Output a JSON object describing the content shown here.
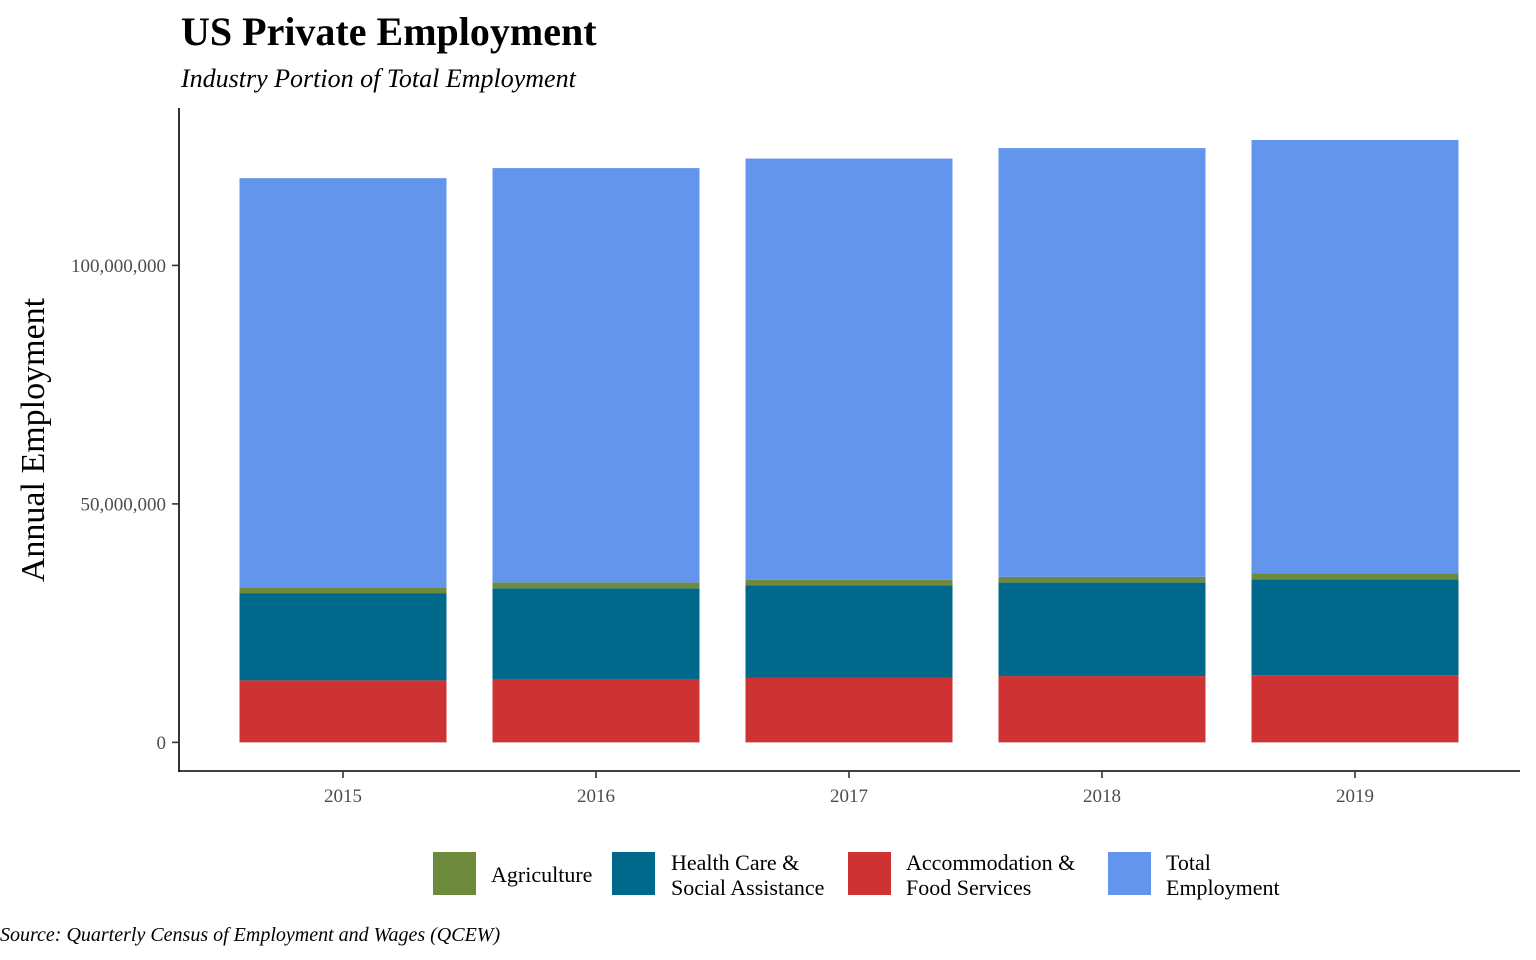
{
  "chart_data": {
    "type": "bar",
    "stacked": true,
    "title": "US Private Employment",
    "subtitle": "Industry Portion of Total Employment",
    "caption": "Source: Quarterly Census of Employment and Wages (QCEW)",
    "xlabel": "",
    "ylabel": "Annual Employment",
    "categories": [
      "2015",
      "2016",
      "2017",
      "2018",
      "2019"
    ],
    "ylim": [
      -6000000,
      133000000
    ],
    "yticks": [
      0,
      50000000,
      100000000
    ],
    "ytick_labels": [
      "0",
      "50,000,000",
      "100,000,000"
    ],
    "grid": false,
    "legend_position": "bottom",
    "series": [
      {
        "name": "Accommodation & Food Services",
        "legend_lines": [
          "Accommodation &",
          "Food Services"
        ],
        "color": "#cd3333",
        "values": [
          13000000,
          13300000,
          13600000,
          13900000,
          14100000
        ]
      },
      {
        "name": "Health Care & Social Assistance",
        "legend_lines": [
          "Health Care &",
          "Social Assistance"
        ],
        "color": "#00688b",
        "values": [
          18300000,
          19000000,
          19300000,
          19600000,
          20100000
        ]
      },
      {
        "name": "Agriculture",
        "legend_lines": [
          "Agriculture"
        ],
        "color": "#6e8b3d",
        "values": [
          1200000,
          1200000,
          1200000,
          1200000,
          1200000
        ]
      },
      {
        "name": "Total Employment",
        "legend_lines": [
          "Total",
          "Employment"
        ],
        "color": "#6495ed",
        "values": [
          85800000,
          86900000,
          88300000,
          89900000,
          90900000
        ]
      }
    ],
    "legend_order": [
      "Agriculture",
      "Health Care & Social Assistance",
      "Accommodation & Food Services",
      "Total Employment"
    ]
  }
}
